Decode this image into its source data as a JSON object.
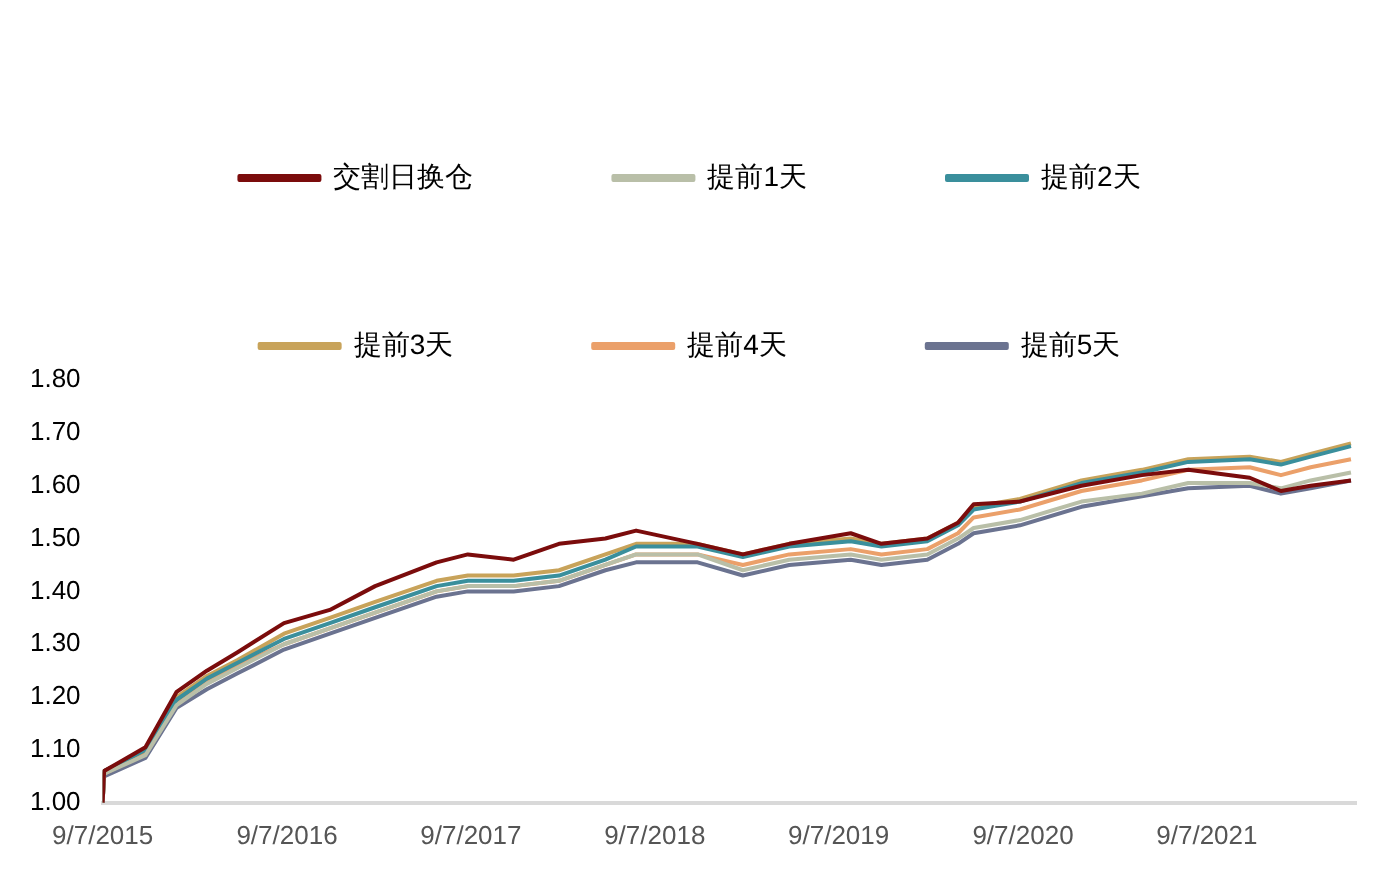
{
  "chart_data": {
    "type": "line",
    "x": [
      "2015-09-07",
      "2015-09-10",
      "2015-12-01",
      "2016-02-01",
      "2016-04-01",
      "2016-06-01",
      "2016-09-01",
      "2016-12-01",
      "2017-03-01",
      "2017-07-01",
      "2017-09-01",
      "2017-12-01",
      "2018-03-01",
      "2018-06-01",
      "2018-08-01",
      "2018-12-01",
      "2019-03-01",
      "2019-06-01",
      "2019-10-01",
      "2019-12-01",
      "2020-03-01",
      "2020-05-01",
      "2020-06-01",
      "2020-09-01",
      "2021-01-01",
      "2021-05-01",
      "2021-08-01",
      "2021-12-01",
      "2022-02-01",
      "2022-04-01",
      "2022-06-20"
    ],
    "series": [
      {
        "name": "交割日换仓",
        "color": "#7b0c0c",
        "values": [
          1.0,
          1.06,
          1.105,
          1.21,
          1.25,
          1.285,
          1.34,
          1.365,
          1.41,
          1.455,
          1.47,
          1.46,
          1.49,
          1.5,
          1.515,
          1.49,
          1.47,
          1.49,
          1.51,
          1.49,
          1.5,
          1.53,
          1.565,
          1.57,
          1.6,
          1.62,
          1.63,
          1.615,
          1.59,
          1.6,
          1.61
        ]
      },
      {
        "name": "提前1天",
        "color": "#b9bfa8",
        "values": [
          1.0,
          1.055,
          1.09,
          1.185,
          1.225,
          1.255,
          1.3,
          1.33,
          1.36,
          1.4,
          1.41,
          1.41,
          1.42,
          1.45,
          1.47,
          1.47,
          1.44,
          1.46,
          1.47,
          1.46,
          1.47,
          1.5,
          1.52,
          1.535,
          1.57,
          1.585,
          1.605,
          1.605,
          1.595,
          1.61,
          1.625
        ]
      },
      {
        "name": "提前2天",
        "color": "#3a8f9c",
        "values": [
          1.0,
          1.06,
          1.1,
          1.195,
          1.235,
          1.265,
          1.31,
          1.34,
          1.37,
          1.41,
          1.42,
          1.42,
          1.43,
          1.46,
          1.485,
          1.485,
          1.465,
          1.485,
          1.495,
          1.485,
          1.495,
          1.525,
          1.555,
          1.57,
          1.605,
          1.625,
          1.645,
          1.65,
          1.64,
          1.655,
          1.675
        ]
      },
      {
        "name": "提前3天",
        "color": "#c8a35a",
        "values": [
          1.0,
          1.06,
          1.1,
          1.2,
          1.24,
          1.27,
          1.32,
          1.35,
          1.38,
          1.42,
          1.43,
          1.43,
          1.44,
          1.47,
          1.49,
          1.49,
          1.47,
          1.49,
          1.5,
          1.49,
          1.5,
          1.53,
          1.56,
          1.575,
          1.61,
          1.63,
          1.65,
          1.655,
          1.645,
          1.66,
          1.68
        ]
      },
      {
        "name": "提前4天",
        "color": "#eba06a",
        "values": [
          1.0,
          1.055,
          1.095,
          1.19,
          1.23,
          1.26,
          1.3,
          1.33,
          1.36,
          1.4,
          1.41,
          1.41,
          1.42,
          1.45,
          1.47,
          1.47,
          1.45,
          1.47,
          1.48,
          1.47,
          1.48,
          1.51,
          1.54,
          1.555,
          1.59,
          1.61,
          1.63,
          1.635,
          1.62,
          1.635,
          1.65
        ]
      },
      {
        "name": "提前5天",
        "color": "#6b7390",
        "values": [
          1.0,
          1.05,
          1.085,
          1.18,
          1.215,
          1.245,
          1.29,
          1.32,
          1.35,
          1.39,
          1.4,
          1.4,
          1.41,
          1.44,
          1.455,
          1.455,
          1.43,
          1.45,
          1.46,
          1.45,
          1.46,
          1.49,
          1.51,
          1.525,
          1.56,
          1.58,
          1.595,
          1.6,
          1.585,
          1.595,
          1.61
        ]
      }
    ],
    "xlim": [
      "2015-09-07",
      "2022-06-30"
    ],
    "xticks": [
      {
        "value": "2015-09-07",
        "label": "9/7/2015"
      },
      {
        "value": "2016-09-07",
        "label": "9/7/2016"
      },
      {
        "value": "2017-09-07",
        "label": "9/7/2017"
      },
      {
        "value": "2018-09-07",
        "label": "9/7/2018"
      },
      {
        "value": "2019-09-07",
        "label": "9/7/2019"
      },
      {
        "value": "2020-09-07",
        "label": "9/7/2020"
      },
      {
        "value": "2021-09-07",
        "label": "9/7/2021"
      }
    ],
    "ylim": [
      1.0,
      1.8
    ],
    "yticks": [
      {
        "value": 1.0,
        "label": "1.00"
      },
      {
        "value": 1.1,
        "label": "1.10"
      },
      {
        "value": 1.2,
        "label": "1.20"
      },
      {
        "value": 1.3,
        "label": "1.30"
      },
      {
        "value": 1.4,
        "label": "1.40"
      },
      {
        "value": 1.5,
        "label": "1.50"
      },
      {
        "value": 1.6,
        "label": "1.60"
      },
      {
        "value": 1.7,
        "label": "1.70"
      },
      {
        "value": 1.8,
        "label": "1.80"
      }
    ],
    "legend": "top",
    "grid": false,
    "marker": "none",
    "line_style": "solid"
  }
}
